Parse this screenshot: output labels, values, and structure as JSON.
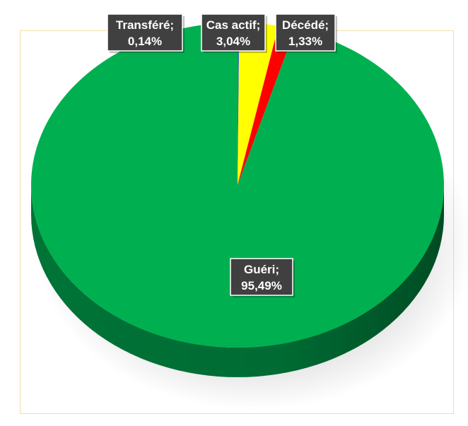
{
  "chart_data": {
    "type": "pie",
    "style": "3d",
    "categories": [
      "Transféré",
      "Cas actif",
      "Décédé",
      "Guéri"
    ],
    "values": [
      0.14,
      3.04,
      1.33,
      95.49
    ],
    "value_labels": [
      "0,14%",
      "3,04%",
      "1,33%",
      "95,49%"
    ],
    "colors": [
      "#2e75b6",
      "#ffff00",
      "#ff0000",
      "#00b050"
    ],
    "side_colors": [
      "#1f4e79",
      "#b8b800",
      "#b00000",
      "#007a3a"
    ],
    "title": "",
    "legend": "none"
  }
}
